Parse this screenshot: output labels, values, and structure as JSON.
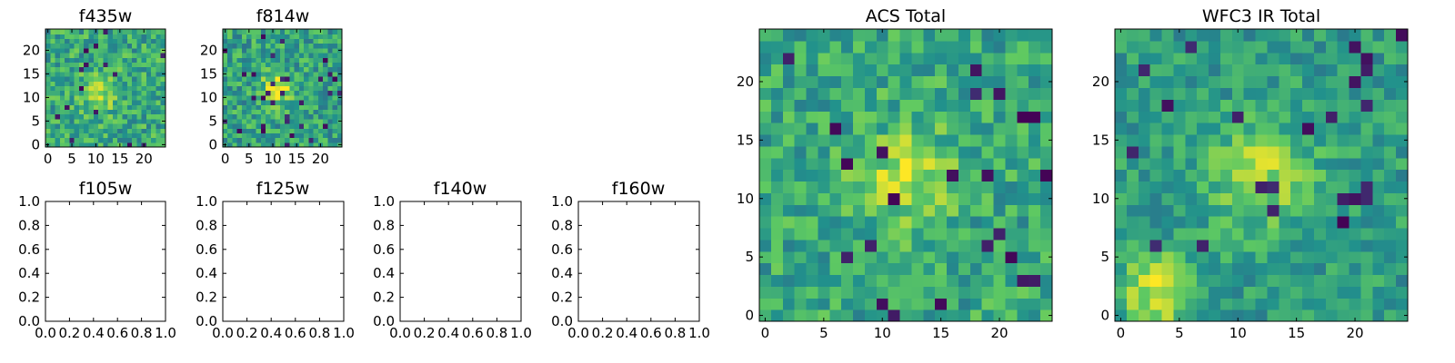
{
  "figure": {
    "background": "#ffffff",
    "colormap": "viridis",
    "colormap_stops": [
      "#440154",
      "#3b528b",
      "#21918c",
      "#5ec962",
      "#fde725"
    ]
  },
  "chart_data": [
    {
      "id": "f435w",
      "type": "heatmap",
      "title": "f435w",
      "grid_size": [
        25,
        25
      ],
      "xlim": [
        -0.5,
        24.5
      ],
      "ylim": [
        -0.5,
        24.5
      ],
      "xticks": [
        0,
        5,
        10,
        15,
        20
      ],
      "yticks": [
        0,
        5,
        10,
        15,
        20
      ],
      "value_range": [
        0,
        1
      ],
      "field": {
        "background": 0.6,
        "noise": 0.2,
        "source_center": [
          11,
          11
        ],
        "source_sigma": 3.0,
        "source_peak": 0.2,
        "seed": 435
      }
    },
    {
      "id": "f814w",
      "type": "heatmap",
      "title": "f814w",
      "grid_size": [
        25,
        25
      ],
      "xlim": [
        -0.5,
        24.5
      ],
      "ylim": [
        -0.5,
        24.5
      ],
      "xticks": [
        0,
        5,
        10,
        15,
        20
      ],
      "yticks": [
        0,
        5,
        10,
        15,
        20
      ],
      "value_range": [
        0,
        1
      ],
      "field": {
        "background": 0.58,
        "noise": 0.2,
        "source_center": [
          11,
          12
        ],
        "source_sigma": 2.2,
        "source_peak": 0.4,
        "seed": 814
      }
    },
    {
      "id": "f105w",
      "type": "empty",
      "title": "f105w",
      "xlim": [
        0,
        1
      ],
      "ylim": [
        0,
        1
      ],
      "xticks": [
        "0.0",
        "0.2",
        "0.4",
        "0.6",
        "0.8",
        "1.0"
      ],
      "yticks": [
        "0.0",
        "0.2",
        "0.4",
        "0.6",
        "0.8",
        "1.0"
      ]
    },
    {
      "id": "f125w",
      "type": "empty",
      "title": "f125w",
      "xlim": [
        0,
        1
      ],
      "ylim": [
        0,
        1
      ],
      "xticks": [
        "0.0",
        "0.2",
        "0.4",
        "0.6",
        "0.8",
        "1.0"
      ],
      "yticks": [
        "0.0",
        "0.2",
        "0.4",
        "0.6",
        "0.8",
        "1.0"
      ]
    },
    {
      "id": "f140w",
      "type": "empty",
      "title": "f140w",
      "xlim": [
        0,
        1
      ],
      "ylim": [
        0,
        1
      ],
      "xticks": [
        "0.0",
        "0.2",
        "0.4",
        "0.6",
        "0.8",
        "1.0"
      ],
      "yticks": [
        "0.0",
        "0.2",
        "0.4",
        "0.6",
        "0.8",
        "1.0"
      ]
    },
    {
      "id": "f160w",
      "type": "empty",
      "title": "f160w",
      "xlim": [
        0,
        1
      ],
      "ylim": [
        0,
        1
      ],
      "xticks": [
        "0.0",
        "0.2",
        "0.4",
        "0.6",
        "0.8",
        "1.0"
      ],
      "yticks": [
        "0.0",
        "0.2",
        "0.4",
        "0.6",
        "0.8",
        "1.0"
      ]
    },
    {
      "id": "acs-total",
      "type": "heatmap",
      "title": "ACS Total",
      "grid_size": [
        25,
        25
      ],
      "xlim": [
        -0.5,
        24.5
      ],
      "ylim": [
        -0.5,
        24.5
      ],
      "xticks": [
        0,
        5,
        10,
        15,
        20
      ],
      "yticks": [
        0,
        5,
        10,
        15,
        20
      ],
      "value_range": [
        0,
        1
      ],
      "field": {
        "background": 0.6,
        "noise": 0.18,
        "source_center": [
          12,
          12
        ],
        "source_sigma": 2.8,
        "source_peak": 0.28,
        "seed": 1001
      }
    },
    {
      "id": "wfc3-ir-total",
      "type": "heatmap",
      "title": "WFC3 IR Total",
      "grid_size": [
        25,
        25
      ],
      "xlim": [
        -0.5,
        24.5
      ],
      "ylim": [
        -0.5,
        24.5
      ],
      "xticks": [
        0,
        5,
        10,
        15,
        20
      ],
      "yticks": [
        0,
        5,
        10,
        15,
        20
      ],
      "value_range": [
        0,
        1
      ],
      "field": {
        "background": 0.55,
        "noise": 0.15,
        "source_center": [
          12,
          12
        ],
        "source_sigma": 3.2,
        "source_peak": 0.3,
        "second_source_center": [
          3,
          2
        ],
        "second_source_sigma": 2.2,
        "second_source_peak": 0.38,
        "seed": 2002
      }
    }
  ]
}
